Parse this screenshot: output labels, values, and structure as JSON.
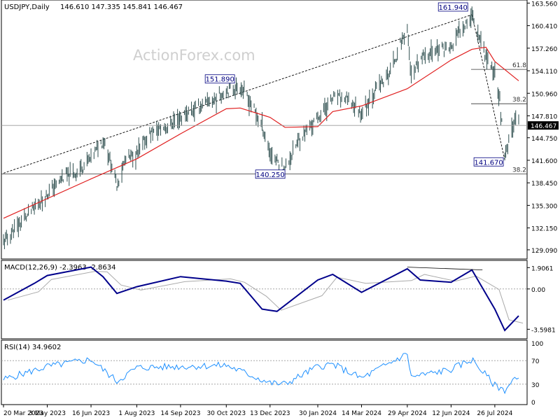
{
  "chart_data": {
    "type": "line",
    "header": {
      "symbol": "USDJPY,Daily",
      "ohlc": "146.610 147.335 145.841 146.467"
    },
    "watermark": "ActionForex.com",
    "price_panel": {
      "ylim": [
        128.2,
        163.6
      ],
      "y_ticks": [
        "163.560",
        "160.410",
        "157.260",
        "154.110",
        "150.960",
        "147.810",
        "144.750",
        "141.600",
        "138.450",
        "135.300",
        "132.150",
        "129.090"
      ],
      "y_tick_values": [
        163.56,
        160.41,
        157.26,
        154.11,
        150.96,
        147.81,
        144.75,
        141.6,
        138.45,
        135.3,
        132.15,
        129.09
      ],
      "current_price_label": "146.467",
      "current_price": 146.467,
      "price_path": [
        [
          "20 Mar 2023",
          130.2
        ],
        [
          "10 Apr 2023",
          133.4
        ],
        [
          "3 May 2023",
          136.9
        ],
        [
          "20 May 2023",
          139.3
        ],
        [
          "1 Jun 2023",
          139.8
        ],
        [
          "16 Jun 2023",
          141.9
        ],
        [
          "29 Jun 2023",
          144.6
        ],
        [
          "12 Jul 2023",
          138.2
        ],
        [
          "21 Jul 2023",
          141.7
        ],
        [
          "1 Aug 2023",
          142.4
        ],
        [
          "14 Aug 2023",
          145.3
        ],
        [
          "1 Sep 2023",
          146.3
        ],
        [
          "14 Sep 2023",
          147.6
        ],
        [
          "5 Oct 2023",
          149.2
        ],
        [
          "20 Oct 2023",
          150.2
        ],
        [
          "30 Oct 2023",
          151.4
        ],
        [
          "13 Nov 2023",
          151.89
        ],
        [
          "25 Nov 2023",
          149.2
        ],
        [
          "5 Dec 2023",
          146.4
        ],
        [
          "13 Dec 2023",
          142.6
        ],
        [
          "28 Dec 2023",
          140.25
        ],
        [
          "10 Jan 2024",
          144.3
        ],
        [
          "30 Jan 2024",
          147.5
        ],
        [
          "14 Feb 2024",
          150.2
        ],
        [
          "27 Feb 2024",
          150.2
        ],
        [
          "14 Mar 2024",
          148.2
        ],
        [
          "28 Mar 2024",
          151.4
        ],
        [
          "10 Apr 2024",
          153.4
        ],
        [
          "29 Apr 2024",
          160.2
        ],
        [
          "3 May 2024",
          152.9
        ],
        [
          "13 May 2024",
          155.9
        ],
        [
          "29 May 2024",
          157.2
        ],
        [
          "12 Jun 2024",
          157.1
        ],
        [
          "21 Jun 2024",
          159.8
        ],
        [
          "3 Jul 2024",
          161.94
        ],
        [
          "17 Jul 2024",
          156.2
        ],
        [
          "26 Jul 2024",
          153.9
        ],
        [
          "31 Jul 2024",
          150.0
        ],
        [
          "5 Aug 2024",
          141.67
        ],
        [
          "15 Aug 2024",
          147.6
        ],
        [
          "19 Aug 2024",
          146.467
        ]
      ],
      "sma_series_path": [
        [
          "20 Mar 2023",
          133.5
        ],
        [
          "16 Jun 2023",
          139.0
        ],
        [
          "1 Aug 2023",
          141.8
        ],
        [
          "14 Sep 2023",
          145.3
        ],
        [
          "30 Oct 2023",
          148.8
        ],
        [
          "13 Nov 2023",
          148.9
        ],
        [
          "13 Dec 2023",
          147.6
        ],
        [
          "28 Dec 2023",
          146.2
        ],
        [
          "30 Jan 2024",
          146.3
        ],
        [
          "14 Feb 2024",
          148.4
        ],
        [
          "14 Mar 2024",
          149.2
        ],
        [
          "29 Apr 2024",
          151.6
        ],
        [
          "12 Jun 2024",
          155.6
        ],
        [
          "3 Jul 2024",
          157.1
        ],
        [
          "17 Jul 2024",
          157.4
        ],
        [
          "26 Jul 2024",
          155.4
        ],
        [
          "19 Aug 2024",
          152.7
        ]
      ],
      "annotations": [
        {
          "label": "151.890",
          "date": "13 Nov 2023",
          "value": 151.89
        },
        {
          "label": "161.940",
          "date": "3 Jul 2024",
          "value": 161.94
        },
        {
          "label": "140.250",
          "date": "28 Dec 2023",
          "value": 140.25
        },
        {
          "label": "141.670",
          "date": "5 Aug 2024",
          "value": 141.67
        }
      ],
      "fib_levels": [
        {
          "label": "61.8",
          "value": 154.3
        },
        {
          "label": "38.2",
          "value": 149.5
        },
        {
          "label": "38.2",
          "value": 139.7
        }
      ]
    },
    "macd_panel": {
      "title": "MACD(12,26,9) -2.3963 -2.8634",
      "ylim": [
        -4.2,
        2.3
      ],
      "y_ticks": [
        "1.9061",
        "0.00",
        "-3.5981"
      ],
      "y_tick_values": [
        1.9061,
        0,
        -3.5981
      ],
      "macd_path": [
        [
          "20 Mar 2023",
          -1.0
        ],
        [
          "20 Apr 2023",
          0.5
        ],
        [
          "3 May 2023",
          1.2
        ],
        [
          "16 Jun 2023",
          1.95
        ],
        [
          "28 Jun 2023",
          1.1
        ],
        [
          "12 Jul 2023",
          -0.4
        ],
        [
          "1 Aug 2023",
          0.2
        ],
        [
          "14 Sep 2023",
          1.1
        ],
        [
          "30 Oct 2023",
          0.7
        ],
        [
          "13 Nov 2023",
          0.5
        ],
        [
          "5 Dec 2023",
          -1.8
        ],
        [
          "20 Dec 2023",
          -2.0
        ],
        [
          "30 Jan 2024",
          0.8
        ],
        [
          "14 Feb 2024",
          1.3
        ],
        [
          "14 Mar 2024",
          -0.3
        ],
        [
          "29 Apr 2024",
          1.8
        ],
        [
          "12 May 2024",
          0.8
        ],
        [
          "12 Jun 2024",
          0.6
        ],
        [
          "3 Jul 2024",
          1.7
        ],
        [
          "26 Jul 2024",
          -1.8
        ],
        [
          "5 Aug 2024",
          -3.7
        ],
        [
          "19 Aug 2024",
          -2.4
        ]
      ]
    },
    "rsi_panel": {
      "title": "RSI(14) 34.9602",
      "ylim": [
        0,
        100
      ],
      "y_ticks": [
        "100",
        "70",
        "30",
        "0"
      ],
      "y_tick_values": [
        100,
        70,
        30,
        0
      ]
    },
    "x_ticks": [
      "20 Mar 2023",
      "3 May 2023",
      "16 Jun 2023",
      "1 Aug 2023",
      "14 Sep 2023",
      "30 Oct 2023",
      "13 Dec 2023",
      "30 Jan 2024",
      "14 Mar 2024",
      "29 Apr 2024",
      "12 Jun 2024",
      "26 Jul 2024"
    ]
  }
}
